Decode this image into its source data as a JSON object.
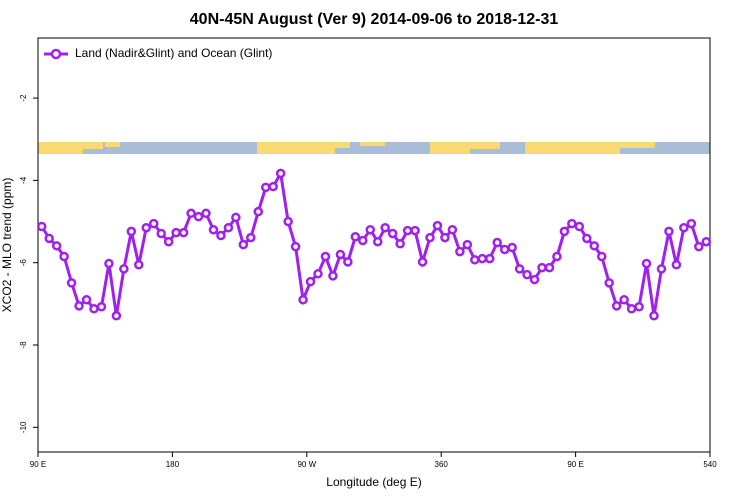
{
  "chart_data": {
    "type": "line",
    "title": "40N-45N August (Ver 9)   2014-09-06 to 2018-12-31",
    "x_label": "Longitude (deg E)",
    "y_label": "XCO2 - MLO trend (ppm)",
    "legend_position": "upper left",
    "xlim": [
      90,
      540
    ],
    "xticks": [
      {
        "value": 90,
        "label": "90 E"
      },
      180,
      {
        "value": 270,
        "label": "90 W"
      },
      360,
      {
        "value": 450,
        "label": "90 E"
      },
      540
    ],
    "ylim": [
      -10.6,
      -0.54
    ],
    "yticks": [
      -10,
      -8,
      -6,
      -4,
      -2
    ],
    "x": [
      92.5,
      97.5,
      102.5,
      107.5,
      112.5,
      117.5,
      122.5,
      127.5,
      132.5,
      137.5,
      142.5,
      147.5,
      152.5,
      157.5,
      162.5,
      167.5,
      172.5,
      177.5,
      182.5,
      187.5,
      192.5,
      197.5,
      202.5,
      207.5,
      212.5,
      217.5,
      222.5,
      227.5,
      232.5,
      237.5,
      242.5,
      247.5,
      252.5,
      257.5,
      262.5,
      267.5,
      272.5,
      277.5,
      282.5,
      287.5,
      292.5,
      297.5,
      302.5,
      307.5,
      312.5,
      317.5,
      322.5,
      327.5,
      332.5,
      337.5,
      342.5,
      347.5,
      352.5,
      357.5,
      362.5,
      367.5,
      372.5,
      377.5,
      382.5,
      387.5,
      392.5,
      397.5,
      402.5,
      407.5,
      412.5,
      417.5,
      422.5,
      427.5,
      432.5,
      437.5,
      442.5,
      447.5,
      452.5,
      457.5,
      462.5,
      467.5,
      472.5,
      477.5,
      482.5,
      487.5,
      492.5,
      497.5,
      502.5,
      507.5,
      512.5,
      517.5,
      522.5,
      527.5,
      532.5,
      537.5
    ],
    "series": [
      {
        "name": "Land (Nadir&Glint) and Ocean (Glint)",
        "color": "#a020f0",
        "values": [
          -5.12,
          -5.41,
          -5.59,
          -5.85,
          -6.49,
          -7.05,
          -6.9,
          -7.12,
          -7.07,
          -6.02,
          -7.29,
          -6.15,
          -5.24,
          -6.05,
          -5.15,
          -5.05,
          -5.29,
          -5.49,
          -5.27,
          -5.27,
          -4.8,
          -4.88,
          -4.8,
          -5.2,
          -5.34,
          -5.15,
          -4.9,
          -5.56,
          -5.39,
          -4.76,
          -4.17,
          -4.15,
          -3.83,
          -5.0,
          -5.61,
          -6.9,
          -6.46,
          -6.27,
          -5.85,
          -6.32,
          -5.8,
          -5.98,
          -5.37,
          -5.46,
          -5.2,
          -5.49,
          -5.15,
          -5.29,
          -5.54,
          -5.22,
          -5.22,
          -5.98,
          -5.39,
          -5.1,
          -5.39,
          -5.2,
          -5.73,
          -5.56,
          -5.93,
          -5.9,
          -5.9,
          -5.51,
          -5.68,
          -5.63,
          -6.15,
          -6.29,
          -6.41,
          -6.12,
          -6.12,
          -5.85,
          -5.24,
          -5.05,
          -5.12,
          -5.41,
          -5.59,
          -5.85,
          -6.49,
          -7.05,
          -6.9,
          -7.12,
          -7.07,
          -6.02,
          -7.29,
          -6.15,
          -5.24,
          -6.05,
          -5.15,
          -5.05,
          -5.61,
          -5.49
        ]
      }
    ]
  }
}
